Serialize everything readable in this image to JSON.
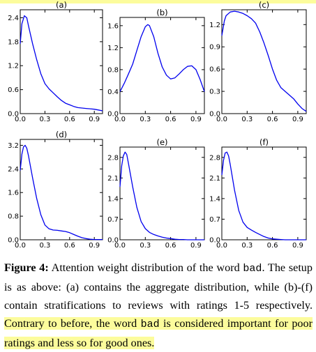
{
  "colors": {
    "line": "#0000ee",
    "highlight": "#fcfc9c"
  },
  "chart_data": [
    {
      "type": "line",
      "title": "(a)",
      "xticks": [
        "0.0",
        "0.3",
        "0.6",
        "0.9"
      ],
      "yticks": [
        "0.0",
        "0.6",
        "1.2",
        "1.8",
        "2.4"
      ],
      "xlim": [
        0,
        1
      ],
      "ylim": [
        0,
        2.6
      ],
      "x": [
        0,
        0.02,
        0.05,
        0.08,
        0.1,
        0.15,
        0.2,
        0.25,
        0.3,
        0.35,
        0.4,
        0.45,
        0.5,
        0.55,
        0.6,
        0.65,
        0.7,
        0.75,
        0.8,
        0.85,
        0.9,
        0.95,
        1.0
      ],
      "y": [
        1.75,
        2.25,
        2.45,
        2.4,
        2.2,
        1.75,
        1.35,
        1.0,
        0.75,
        0.62,
        0.52,
        0.42,
        0.33,
        0.26,
        0.22,
        0.18,
        0.15,
        0.14,
        0.13,
        0.12,
        0.11,
        0.09,
        0.07
      ]
    },
    {
      "type": "line",
      "title": "(b)",
      "xticks": [
        "0.0",
        "0.3",
        "0.6",
        "0.9"
      ],
      "yticks": [
        "0.0",
        "0.4",
        "0.8",
        "1.2",
        "1.6"
      ],
      "xlim": [
        0,
        1
      ],
      "ylim": [
        0,
        1.75
      ],
      "x": [
        0,
        0.05,
        0.1,
        0.15,
        0.2,
        0.25,
        0.3,
        0.33,
        0.35,
        0.4,
        0.45,
        0.5,
        0.55,
        0.6,
        0.65,
        0.7,
        0.75,
        0.8,
        0.85,
        0.9,
        0.95,
        1.0
      ],
      "y": [
        0.4,
        0.55,
        0.72,
        0.9,
        1.15,
        1.4,
        1.58,
        1.62,
        1.6,
        1.4,
        1.1,
        0.85,
        0.7,
        0.63,
        0.65,
        0.72,
        0.8,
        0.86,
        0.87,
        0.8,
        0.62,
        0.4
      ]
    },
    {
      "type": "line",
      "title": "(c)",
      "xticks": [
        "0.0",
        "0.3",
        "0.6",
        "0.9"
      ],
      "yticks": [
        "0.0",
        "0.3",
        "0.6",
        "0.9",
        "1.2"
      ],
      "xlim": [
        0,
        1
      ],
      "ylim": [
        0,
        1.4
      ],
      "x": [
        0,
        0.03,
        0.05,
        0.1,
        0.15,
        0.2,
        0.25,
        0.3,
        0.35,
        0.4,
        0.45,
        0.5,
        0.55,
        0.6,
        0.65,
        0.7,
        0.75,
        0.8,
        0.85,
        0.9,
        0.95,
        1.0
      ],
      "y": [
        1.05,
        1.25,
        1.32,
        1.37,
        1.38,
        1.37,
        1.35,
        1.32,
        1.28,
        1.22,
        1.1,
        0.95,
        0.78,
        0.6,
        0.45,
        0.35,
        0.3,
        0.25,
        0.2,
        0.13,
        0.07,
        0.03
      ]
    },
    {
      "type": "line",
      "title": "(d)",
      "xticks": [
        "0.0",
        "0.3",
        "0.6",
        "0.9"
      ],
      "yticks": [
        "0.0",
        "0.8",
        "1.6",
        "2.4",
        "3.2"
      ],
      "xlim": [
        0,
        1
      ],
      "ylim": [
        0,
        3.4
      ],
      "x": [
        0,
        0.02,
        0.04,
        0.06,
        0.08,
        0.1,
        0.15,
        0.2,
        0.25,
        0.3,
        0.35,
        0.4,
        0.45,
        0.5,
        0.55,
        0.6,
        0.65,
        0.7,
        0.75,
        0.8,
        0.85,
        0.9,
        0.95,
        1.0
      ],
      "y": [
        2.35,
        2.9,
        3.15,
        3.2,
        3.1,
        2.85,
        2.1,
        1.4,
        0.85,
        0.5,
        0.37,
        0.33,
        0.32,
        0.3,
        0.28,
        0.24,
        0.18,
        0.12,
        0.07,
        0.04,
        0.02,
        0.01,
        0.01,
        0.01
      ]
    },
    {
      "type": "line",
      "title": "(e)",
      "xticks": [
        "0.0",
        "0.3",
        "0.6",
        "0.9"
      ],
      "yticks": [
        "0.0",
        "0.7",
        "1.4",
        "2.1",
        "2.8"
      ],
      "xlim": [
        0,
        1
      ],
      "ylim": [
        0,
        3.15
      ],
      "x": [
        0,
        0.02,
        0.04,
        0.06,
        0.08,
        0.1,
        0.15,
        0.2,
        0.25,
        0.3,
        0.35,
        0.4,
        0.45,
        0.5,
        0.55,
        0.6,
        0.65,
        0.7,
        0.75,
        0.8,
        0.85,
        0.9,
        0.95,
        1.0
      ],
      "y": [
        1.8,
        2.5,
        2.85,
        2.98,
        2.9,
        2.6,
        1.8,
        1.1,
        0.62,
        0.38,
        0.25,
        0.18,
        0.13,
        0.09,
        0.06,
        0.04,
        0.02,
        0.01,
        0.01,
        0.0,
        0.0,
        0.0,
        0.0,
        0.0
      ]
    },
    {
      "type": "line",
      "title": "(f)",
      "xticks": [
        "0.0",
        "0.3",
        "0.6",
        "0.9"
      ],
      "yticks": [
        "0.0",
        "0.7",
        "1.4",
        "2.1",
        "2.8"
      ],
      "xlim": [
        0,
        1
      ],
      "ylim": [
        0,
        3.15
      ],
      "x": [
        0,
        0.02,
        0.04,
        0.06,
        0.08,
        0.1,
        0.15,
        0.2,
        0.25,
        0.3,
        0.35,
        0.4,
        0.45,
        0.5,
        0.55,
        0.6,
        0.65,
        0.7,
        0.75,
        0.8,
        0.85,
        0.9,
        0.95,
        1.0
      ],
      "y": [
        2.2,
        2.7,
        2.95,
        2.98,
        2.85,
        2.55,
        1.7,
        1.0,
        0.6,
        0.42,
        0.33,
        0.25,
        0.18,
        0.11,
        0.06,
        0.03,
        0.02,
        0.01,
        0.0,
        0.0,
        0.0,
        0.0,
        0.0,
        0.0
      ]
    }
  ],
  "caption": {
    "label": "Figure 4:",
    "text1": " Attention weight distribution of the word ",
    "word1": "bad",
    "text2": ". The setup is as above: (a) contains the aggregate distribution, while (b)-(f) contain stratifications to reviews with ratings 1-5 respectively.",
    "hl1": "Contrary to before, the word ",
    "word2": "bad",
    "hl2": " is considered important for poor ratings and less so for good ones."
  }
}
